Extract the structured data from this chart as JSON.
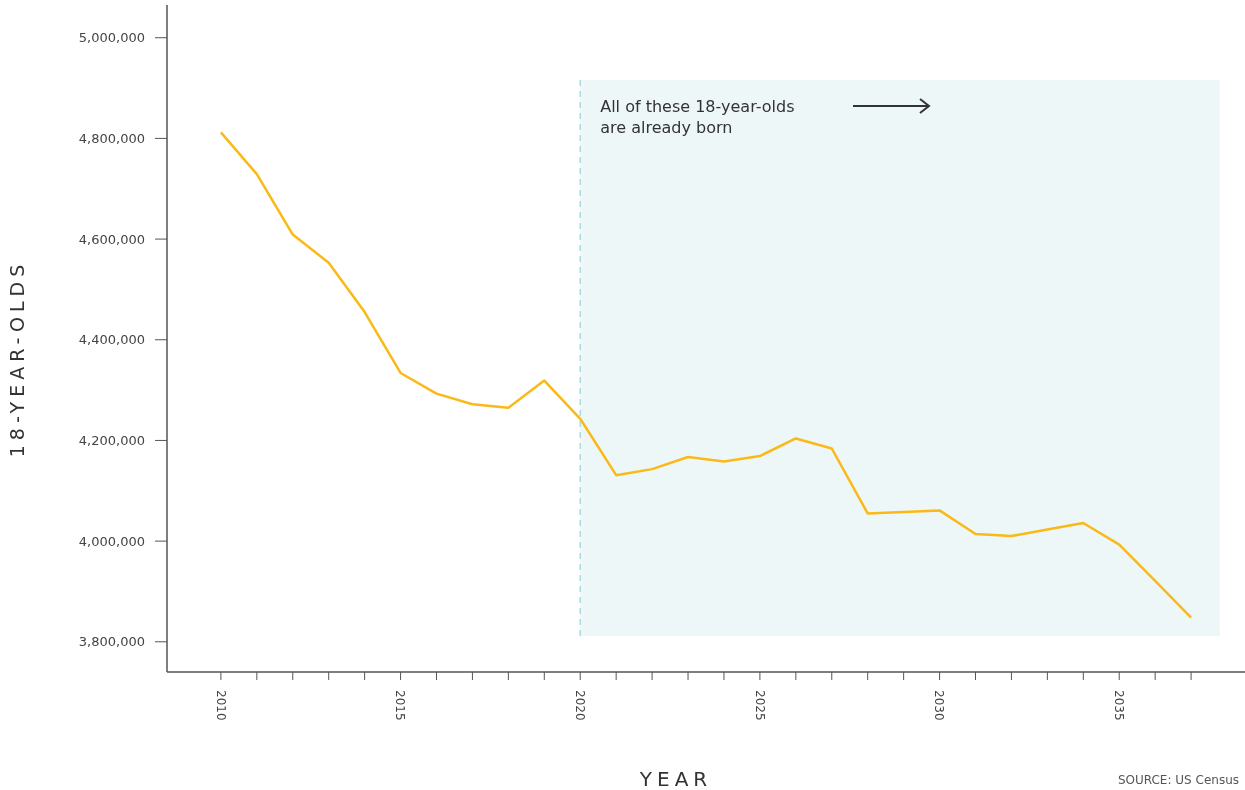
{
  "chart_data": {
    "type": "line",
    "xlabel": "YEAR",
    "ylabel": "18-YEAR-OLDS",
    "x": [
      2010,
      2011,
      2012,
      2013,
      2014,
      2015,
      2016,
      2017,
      2018,
      2019,
      2020,
      2021,
      2022,
      2023,
      2024,
      2025,
      2026,
      2027,
      2028,
      2029,
      2030,
      2031,
      2032,
      2033,
      2034,
      2035,
      2036,
      2037
    ],
    "series": [
      {
        "color": "#fbb917",
        "values": [
          4812000,
          4729000,
          4609000,
          4553000,
          4455000,
          4334000,
          4293000,
          4272000,
          4265000,
          4319000,
          4243000,
          4131000,
          4143000,
          4167000,
          4158000,
          4169000,
          4204000,
          4184000,
          4055000,
          4058000,
          4061000,
          4014000,
          4010000,
          4023000,
          4036000,
          3993000,
          3921000,
          3848000
        ]
      }
    ],
    "xlim": [
      2008.5,
      2038.5
    ],
    "ylim": [
      3740000,
      5065000
    ],
    "xticks": [
      2010,
      {
        "value": 2011,
        "label": null
      },
      {
        "value": 2012,
        "label": null
      },
      {
        "value": 2013,
        "label": null
      },
      {
        "value": 2014,
        "label": null
      },
      2015,
      {
        "value": 2016,
        "label": null
      },
      {
        "value": 2017,
        "label": null
      },
      {
        "value": 2018,
        "label": null
      },
      {
        "value": 2019,
        "label": null
      },
      2020,
      {
        "value": 2021,
        "label": null
      },
      {
        "value": 2022,
        "label": null
      },
      {
        "value": 2023,
        "label": null
      },
      {
        "value": 2024,
        "label": null
      },
      2025,
      {
        "value": 2026,
        "label": null
      },
      {
        "value": 2027,
        "label": null
      },
      {
        "value": 2028,
        "label": null
      },
      {
        "value": 2029,
        "label": null
      },
      2030,
      {
        "value": 2031,
        "label": null
      },
      {
        "value": 2032,
        "label": null
      },
      {
        "value": 2033,
        "label": null
      },
      {
        "value": 2034,
        "label": null
      },
      2035,
      {
        "value": 2036,
        "label": null
      },
      {
        "value": 2037,
        "label": null
      }
    ],
    "yticks": [
      {
        "value": 3800000,
        "label": "3,800,000"
      },
      {
        "value": 4000000,
        "label": "4,000,000"
      },
      {
        "value": 4200000,
        "label": "4,200,000"
      },
      {
        "value": 4400000,
        "label": "4,400,000"
      },
      {
        "value": 4600000,
        "label": "4,600,000"
      },
      {
        "value": 4800000,
        "label": "4,800,000"
      },
      {
        "value": 5000000,
        "label": "5,000,000"
      }
    ],
    "bands": [
      {
        "axis": "x",
        "from": 2020,
        "to": 2037.8,
        "color": "#eef7f8"
      }
    ],
    "ref_lines": [
      {
        "axis": "x",
        "value": 2020,
        "color": "#a8dce0",
        "line_style": "dashed"
      }
    ],
    "annotations": [
      "All of these 18-year-olds\nare already born",
      "SOURCE: US Census"
    ],
    "marker": "none",
    "line_style": "solid"
  }
}
